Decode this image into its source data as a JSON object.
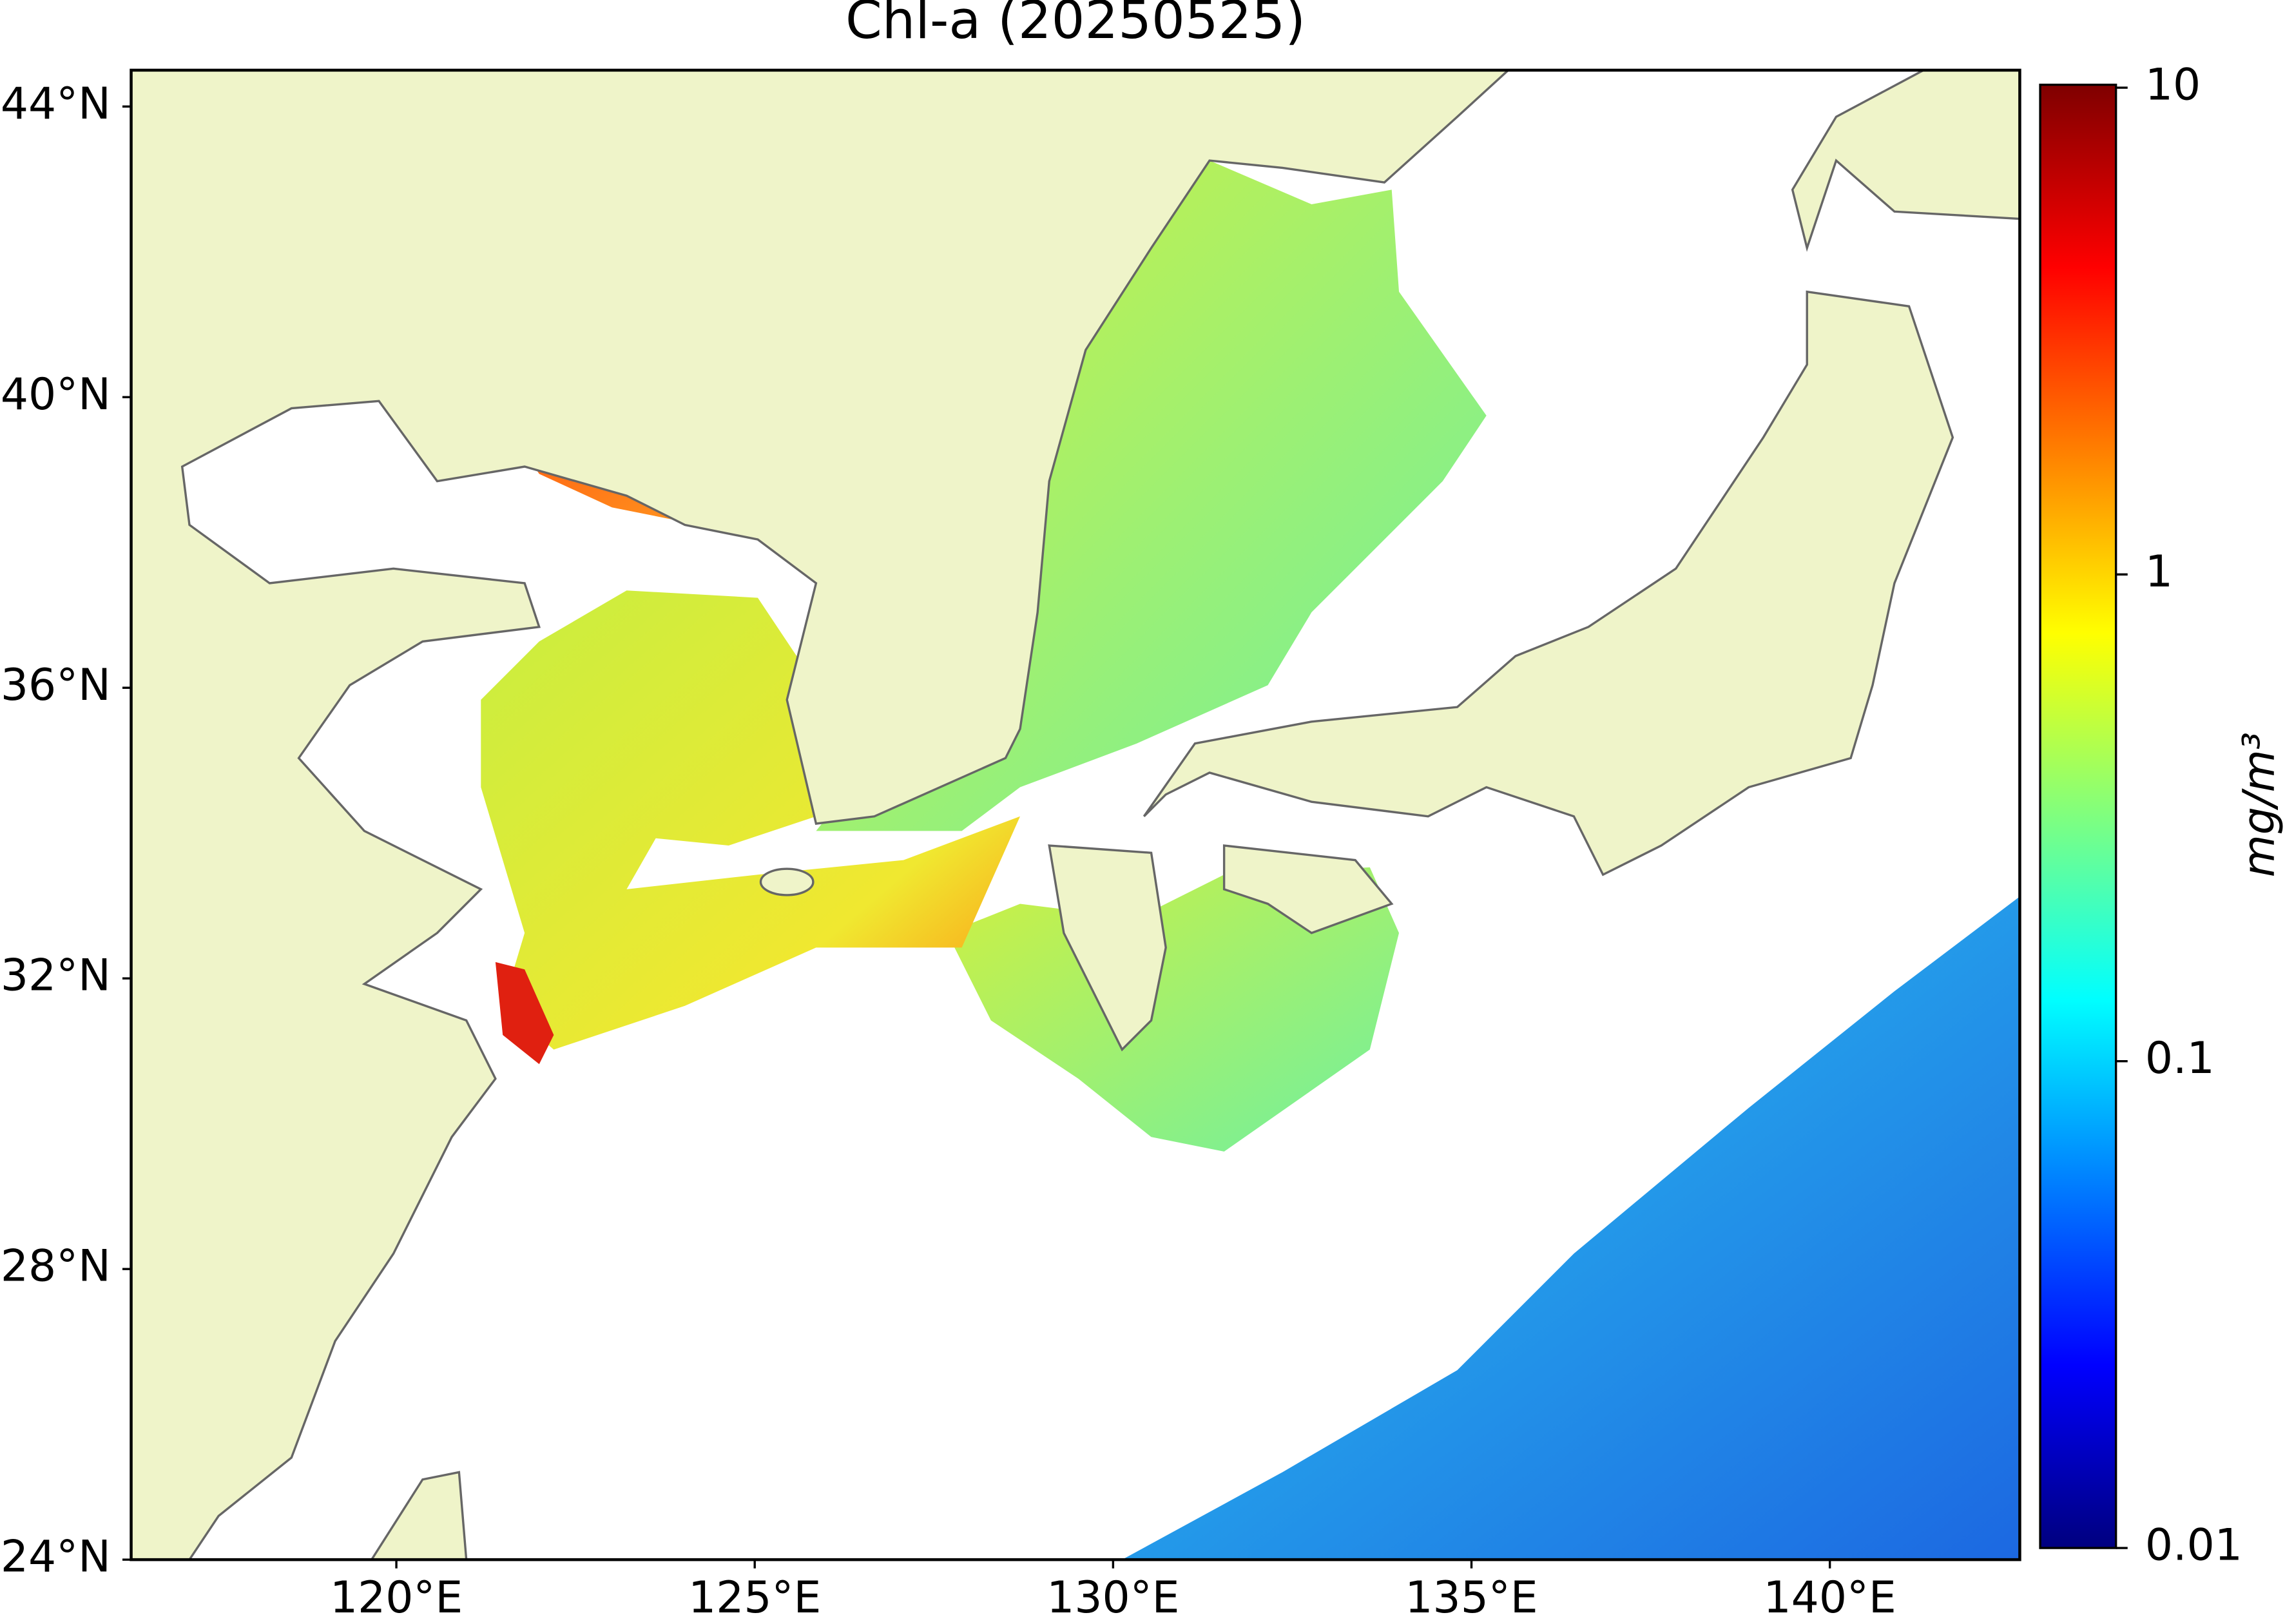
{
  "chart_data": {
    "type": "map",
    "title": "Chl-a (20250525)",
    "xlim": [
      116.3,
      142.65
    ],
    "ylim": [
      24,
      44.5
    ],
    "xticks": [
      {
        "value": 120,
        "label": "120°E"
      },
      {
        "value": 125,
        "label": "125°E"
      },
      {
        "value": 130,
        "label": "130°E"
      },
      {
        "value": 135,
        "label": "135°E"
      },
      {
        "value": 140,
        "label": "140°E"
      }
    ],
    "yticks": [
      {
        "value": 24,
        "label": "24°N"
      },
      {
        "value": 28,
        "label": "28°N"
      },
      {
        "value": 32,
        "label": "32°N"
      },
      {
        "value": 36,
        "label": "36°N"
      },
      {
        "value": 40,
        "label": "40°N"
      },
      {
        "value": 44,
        "label": "44°N"
      }
    ],
    "colorbar": {
      "label": "mg/m³",
      "lim": [
        0.01,
        10
      ],
      "ticks": [
        0.01,
        0.1,
        1,
        10
      ],
      "log": true,
      "colormap": "jet"
    }
  }
}
